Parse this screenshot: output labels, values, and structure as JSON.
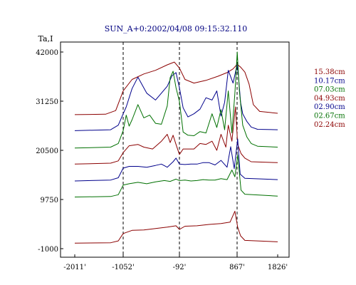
{
  "chart_data": {
    "type": "line",
    "title": "SUN_A+0:2002/04/08 09:15:32.110",
    "ylabel": "Ta,I",
    "xlabel": "",
    "x_ticks": [
      -2011,
      -1052,
      -92,
      867,
      1826
    ],
    "x_tick_labels": [
      "-2011'",
      "-1052'",
      "-92'",
      "867'",
      "1826'"
    ],
    "y_ticks": [
      -1000,
      9750,
      20500,
      31250,
      42000
    ],
    "y_tick_labels": [
      "-1000",
      "9750",
      "20500",
      "31250",
      "42000"
    ],
    "xlim": [
      -2011,
      1826
    ],
    "ylim": [
      -1000,
      42000
    ],
    "vlines": [
      -1052,
      -92,
      867
    ],
    "grid": false,
    "legend_position": "right",
    "series": [
      {
        "name": "15.38cm",
        "color": "#8b0000",
        "points": [
          [
            -2011,
            28300
          ],
          [
            -1400,
            28400
          ],
          [
            -1200,
            29200
          ],
          [
            -1052,
            33500
          ],
          [
            -900,
            36000
          ],
          [
            -700,
            37200
          ],
          [
            -500,
            38000
          ],
          [
            -300,
            39200
          ],
          [
            -180,
            39800
          ],
          [
            -92,
            38500
          ],
          [
            0,
            36000
          ],
          [
            150,
            35200
          ],
          [
            350,
            35800
          ],
          [
            550,
            36700
          ],
          [
            700,
            37500
          ],
          [
            800,
            38300
          ],
          [
            867,
            39300
          ],
          [
            950,
            38700
          ],
          [
            1050,
            37600
          ],
          [
            1150,
            35000
          ],
          [
            1250,
            30500
          ],
          [
            1400,
            29000
          ],
          [
            1826,
            28600
          ]
        ]
      },
      {
        "name": "10.17cm",
        "color": "#00008b",
        "points": [
          [
            -2011,
            24800
          ],
          [
            -1300,
            25000
          ],
          [
            -1150,
            26000
          ],
          [
            -1052,
            28500
          ],
          [
            -1000,
            30000
          ],
          [
            -900,
            34000
          ],
          [
            -800,
            36500
          ],
          [
            -650,
            33000
          ],
          [
            -500,
            31500
          ],
          [
            -300,
            34500
          ],
          [
            -220,
            36800
          ],
          [
            -150,
            37500
          ],
          [
            -92,
            34200
          ],
          [
            -30,
            29800
          ],
          [
            50,
            27800
          ],
          [
            150,
            28500
          ],
          [
            250,
            29500
          ],
          [
            350,
            32000
          ],
          [
            450,
            31500
          ],
          [
            530,
            33500
          ],
          [
            600,
            28000
          ],
          [
            660,
            31000
          ],
          [
            720,
            38000
          ],
          [
            800,
            35200
          ],
          [
            867,
            39200
          ],
          [
            900,
            36600
          ],
          [
            950,
            31000
          ],
          [
            1000,
            28500
          ],
          [
            1100,
            26800
          ],
          [
            1200,
            25600
          ],
          [
            1350,
            25100
          ],
          [
            1826,
            25000
          ]
        ]
      },
      {
        "name": "07.03cm",
        "color": "#007000",
        "points": [
          [
            -2011,
            21000
          ],
          [
            -1300,
            21200
          ],
          [
            -1150,
            22000
          ],
          [
            -1052,
            24800
          ],
          [
            -1000,
            28200
          ],
          [
            -950,
            25800
          ],
          [
            -900,
            27200
          ],
          [
            -800,
            30500
          ],
          [
            -700,
            27600
          ],
          [
            -600,
            28200
          ],
          [
            -500,
            26400
          ],
          [
            -400,
            26200
          ],
          [
            -300,
            30200
          ],
          [
            -250,
            36400
          ],
          [
            -200,
            37800
          ],
          [
            -150,
            34200
          ],
          [
            -92,
            31200
          ],
          [
            -30,
            24500
          ],
          [
            50,
            23800
          ],
          [
            150,
            23700
          ],
          [
            250,
            24600
          ],
          [
            350,
            24300
          ],
          [
            450,
            28500
          ],
          [
            530,
            25500
          ],
          [
            600,
            29400
          ],
          [
            660,
            25000
          ],
          [
            720,
            33500
          ],
          [
            780,
            24300
          ],
          [
            830,
            33000
          ],
          [
            870,
            42000
          ],
          [
            920,
            33500
          ],
          [
            1000,
            26000
          ],
          [
            1100,
            23400
          ],
          [
            1200,
            22000
          ],
          [
            1350,
            21400
          ],
          [
            1826,
            21200
          ]
        ]
      },
      {
        "name": "04.93cm",
        "color": "#8b0000",
        "points": [
          [
            -2011,
            17500
          ],
          [
            -1300,
            17700
          ],
          [
            -1150,
            18200
          ],
          [
            -1052,
            20000
          ],
          [
            -950,
            21500
          ],
          [
            -800,
            21800
          ],
          [
            -700,
            21200
          ],
          [
            -550,
            20800
          ],
          [
            -400,
            22500
          ],
          [
            -300,
            24000
          ],
          [
            -250,
            22200
          ],
          [
            -200,
            23800
          ],
          [
            -150,
            21800
          ],
          [
            -92,
            19600
          ],
          [
            -30,
            20800
          ],
          [
            50,
            20800
          ],
          [
            150,
            20800
          ],
          [
            250,
            22000
          ],
          [
            350,
            21800
          ],
          [
            450,
            22500
          ],
          [
            530,
            20500
          ],
          [
            600,
            24000
          ],
          [
            680,
            21200
          ],
          [
            720,
            26000
          ],
          [
            780,
            22500
          ],
          [
            840,
            30000
          ],
          [
            880,
            21800
          ],
          [
            960,
            19800
          ],
          [
            1050,
            18800
          ],
          [
            1200,
            18000
          ],
          [
            1826,
            17800
          ]
        ]
      },
      {
        "name": "02.90cm",
        "color": "#00008b",
        "points": [
          [
            -2011,
            13800
          ],
          [
            -1300,
            14000
          ],
          [
            -1150,
            14500
          ],
          [
            -1052,
            16600
          ],
          [
            -950,
            17000
          ],
          [
            -800,
            17000
          ],
          [
            -650,
            16800
          ],
          [
            -500,
            17200
          ],
          [
            -400,
            17500
          ],
          [
            -300,
            16800
          ],
          [
            -200,
            18000
          ],
          [
            -150,
            18800
          ],
          [
            -92,
            17500
          ],
          [
            0,
            17400
          ],
          [
            100,
            17500
          ],
          [
            200,
            17500
          ],
          [
            300,
            17800
          ],
          [
            400,
            17800
          ],
          [
            500,
            17300
          ],
          [
            600,
            18300
          ],
          [
            700,
            16800
          ],
          [
            760,
            21300
          ],
          [
            820,
            16500
          ],
          [
            880,
            23000
          ],
          [
            940,
            15300
          ],
          [
            1050,
            14400
          ],
          [
            1826,
            14100
          ]
        ]
      },
      {
        "name": "02.67cm",
        "color": "#007000",
        "points": [
          [
            -2011,
            10300
          ],
          [
            -1300,
            10400
          ],
          [
            -1150,
            10800
          ],
          [
            -1052,
            12900
          ],
          [
            -950,
            13200
          ],
          [
            -800,
            13500
          ],
          [
            -650,
            13200
          ],
          [
            -500,
            13600
          ],
          [
            -350,
            13900
          ],
          [
            -250,
            13700
          ],
          [
            -150,
            14200
          ],
          [
            -92,
            13900
          ],
          [
            0,
            14000
          ],
          [
            100,
            13800
          ],
          [
            200,
            13900
          ],
          [
            300,
            14100
          ],
          [
            400,
            14000
          ],
          [
            500,
            14000
          ],
          [
            600,
            14300
          ],
          [
            700,
            14100
          ],
          [
            780,
            16200
          ],
          [
            830,
            14700
          ],
          [
            880,
            19500
          ],
          [
            960,
            11800
          ],
          [
            1050,
            10900
          ],
          [
            1826,
            10500
          ]
        ]
      },
      {
        "name": "02.24cm",
        "color": "#8b0000",
        "points": [
          [
            -2011,
            200
          ],
          [
            -1300,
            300
          ],
          [
            -1150,
            700
          ],
          [
            -1052,
            2300
          ],
          [
            -900,
            3000
          ],
          [
            -700,
            3100
          ],
          [
            -500,
            3400
          ],
          [
            -300,
            3700
          ],
          [
            -150,
            4000
          ],
          [
            -92,
            3200
          ],
          [
            0,
            3900
          ],
          [
            200,
            4000
          ],
          [
            400,
            4300
          ],
          [
            600,
            4500
          ],
          [
            750,
            4800
          ],
          [
            830,
            7200
          ],
          [
            880,
            3700
          ],
          [
            950,
            1800
          ],
          [
            1050,
            800
          ],
          [
            1826,
            500
          ]
        ]
      }
    ]
  }
}
